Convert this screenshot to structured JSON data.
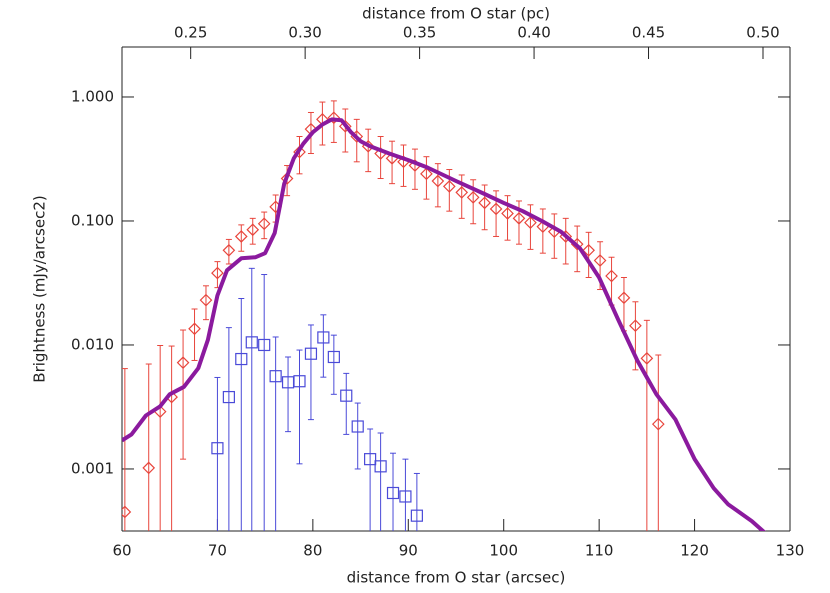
{
  "chart_data": {
    "type": "scatter",
    "xlabel": "distance from O star (arcsec)",
    "x2label": "distance from O star (pc)",
    "ylabel": "Brightness (mJy/arcsec2)",
    "xlim": [
      60,
      130
    ],
    "xticks": [
      60,
      70,
      80,
      90,
      100,
      110,
      120,
      130
    ],
    "x2lim": [
      0.22,
      0.5118
    ],
    "x2ticks": [
      0.25,
      {
        "value": 0.3,
        "label": "0.30"
      },
      0.35,
      {
        "value": 0.4,
        "label": "0.40"
      },
      0.45,
      {
        "value": 0.5,
        "label": "0.50"
      }
    ],
    "ylim": [
      0.000316,
      2.53
    ],
    "yscale": "log",
    "yticks": [
      {
        "value": 1,
        "label": "1.000"
      },
      {
        "value": 0.1,
        "label": "0.100"
      },
      {
        "value": 0.01,
        "label": "0.010"
      },
      {
        "value": 0.001,
        "label": "0.001"
      }
    ],
    "series": [
      {
        "kind": "errorbar",
        "marker": "diamond",
        "color": "#e8453c",
        "x": [
          60.3,
          62.8,
          64.0,
          65.2,
          66.4,
          67.6,
          68.8,
          70.0,
          71.2,
          72.5,
          73.7,
          74.9,
          76.1,
          77.3,
          78.6,
          79.8,
          81.0,
          82.2,
          83.4,
          84.6,
          85.8,
          87.1,
          88.3,
          89.5,
          90.7,
          91.9,
          93.1,
          94.3,
          95.6,
          96.8,
          98.0,
          99.2,
          100.4,
          101.6,
          102.8,
          104.1,
          105.3,
          106.5,
          107.7,
          108.9,
          110.1,
          111.3,
          112.6,
          113.8,
          115.0,
          116.2
        ],
        "values": [
          0.00045,
          0.00102,
          0.0029,
          0.0038,
          0.0072,
          0.0135,
          0.023,
          0.038,
          0.058,
          0.075,
          0.085,
          0.095,
          0.13,
          0.22,
          0.36,
          0.55,
          0.66,
          0.68,
          0.58,
          0.48,
          0.4,
          0.35,
          0.32,
          0.3,
          0.28,
          0.24,
          0.21,
          0.19,
          0.17,
          0.155,
          0.14,
          0.125,
          0.115,
          0.105,
          0.097,
          0.09,
          0.082,
          0.075,
          0.065,
          0.058,
          0.048,
          0.036,
          0.024,
          0.0143,
          0.0078,
          0.0023
        ],
        "errors": [
          0.006,
          0.006,
          0.007,
          0.006,
          0.006,
          0.006,
          0.007,
          0.009,
          0.013,
          0.018,
          0.02,
          0.023,
          0.032,
          0.06,
          0.12,
          0.2,
          0.25,
          0.25,
          0.22,
          0.18,
          0.15,
          0.13,
          0.12,
          0.11,
          0.1,
          0.09,
          0.08,
          0.07,
          0.065,
          0.06,
          0.055,
          0.05,
          0.045,
          0.04,
          0.038,
          0.035,
          0.032,
          0.03,
          0.026,
          0.023,
          0.02,
          0.015,
          0.011,
          0.008,
          0.008,
          0.006
        ]
      },
      {
        "kind": "errorbar",
        "marker": "square",
        "color": "#4a4ad8",
        "x": [
          70.0,
          71.2,
          72.5,
          73.6,
          74.9,
          76.1,
          77.4,
          78.6,
          79.8,
          81.1,
          82.2,
          83.5,
          84.7,
          86.0,
          87.1,
          88.4,
          89.7,
          90.9
        ],
        "values": [
          0.00147,
          0.0038,
          0.0077,
          0.0105,
          0.01,
          0.0056,
          0.005,
          0.0051,
          0.0085,
          0.0115,
          0.008,
          0.0039,
          0.0022,
          0.0012,
          0.00105,
          0.00064,
          0.0006,
          0.00042
        ],
        "errors": [
          0.004,
          0.01,
          0.016,
          0.031,
          0.027,
          0.006,
          0.003,
          0.004,
          0.006,
          0.006,
          0.004,
          0.002,
          0.0012,
          0.0009,
          0.0009,
          0.0007,
          0.0006,
          0.0005
        ]
      },
      {
        "kind": "line",
        "color": "#8b1a9e",
        "x": [
          60,
          61,
          62.5,
          64,
          65,
          66.5,
          68,
          69,
          70,
          71,
          72.5,
          74,
          75,
          76,
          77,
          78,
          79,
          80,
          81,
          82,
          83,
          84,
          85,
          86,
          88,
          90,
          92,
          95,
          98,
          100,
          102,
          104,
          106,
          108,
          110,
          112,
          114,
          116,
          118,
          120,
          122,
          123.5,
          126,
          127.5
        ],
        "values": [
          0.0017,
          0.0019,
          0.0027,
          0.0032,
          0.004,
          0.0046,
          0.0065,
          0.011,
          0.025,
          0.04,
          0.05,
          0.051,
          0.055,
          0.08,
          0.2,
          0.32,
          0.42,
          0.52,
          0.6,
          0.66,
          0.65,
          0.52,
          0.44,
          0.4,
          0.35,
          0.31,
          0.27,
          0.21,
          0.165,
          0.14,
          0.12,
          0.1,
          0.082,
          0.06,
          0.035,
          0.016,
          0.0075,
          0.004,
          0.0025,
          0.0012,
          0.0007,
          0.00052,
          0.00038,
          0.0003
        ]
      }
    ]
  }
}
